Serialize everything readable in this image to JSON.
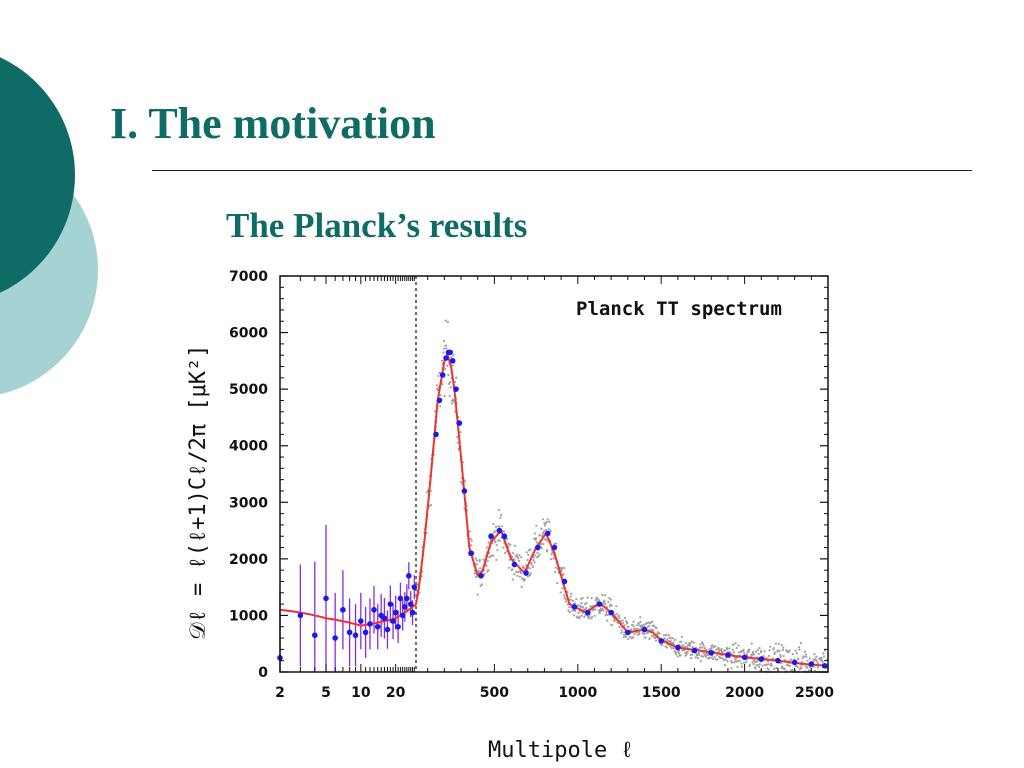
{
  "slide": {
    "title": "I. The motivation",
    "subtitle": "The Planck’s results"
  },
  "colors": {
    "accent_dark": "#0e6b66",
    "accent_light": "#a5d3d3",
    "model_curve": "#ee3333",
    "binned_points": "#1a1aee",
    "lowl_errorbars": "#8a2be2",
    "unbinned_points": "#a0a0a0"
  },
  "chart_data": {
    "type": "scatter",
    "title": "Planck TT spectrum",
    "xlabel": "Multipole ℓ",
    "ylabel": "𝒟ℓ = ℓ(ℓ+1)Cℓ/2π [μK²]",
    "x_scale_low": "log",
    "x_scale_high": "linear",
    "x_split": 30,
    "xlim": [
      2,
      2500
    ],
    "ylim": [
      0,
      7000
    ],
    "x_ticks_low": [
      "2",
      "5",
      "10",
      "20"
    ],
    "x_ticks_high": [
      "500",
      "1000",
      "1500",
      "2000",
      "2500"
    ],
    "y_ticks": [
      "0",
      "1000",
      "2000",
      "3000",
      "4000",
      "5000",
      "6000",
      "7000"
    ],
    "series": [
      {
        "kind": "model_curve",
        "x": [
          2,
          5,
          10,
          20,
          30,
          50,
          80,
          120,
          160,
          200,
          220,
          240,
          260,
          300,
          350,
          400,
          430,
          480,
          540,
          600,
          680,
          750,
          810,
          860,
          950,
          1050,
          1130,
          1200,
          1300,
          1400,
          1450,
          1500,
          1600,
          1700,
          1800,
          1900,
          2000,
          2100,
          2200,
          2300,
          2400,
          2500
        ],
        "y": [
          1100,
          950,
          820,
          950,
          1200,
          1550,
          2300,
          3500,
          4800,
          5500,
          5600,
          5400,
          5000,
          3800,
          2200,
          1700,
          1800,
          2300,
          2500,
          2000,
          1750,
          2200,
          2450,
          2100,
          1200,
          1050,
          1220,
          1050,
          700,
          750,
          700,
          560,
          430,
          390,
          350,
          300,
          260,
          230,
          200,
          160,
          130,
          110
        ]
      },
      {
        "kind": "binned_points",
        "x": [
          150,
          170,
          190,
          210,
          225,
          235,
          250,
          270,
          290,
          320,
          360,
          420,
          480,
          530,
          560,
          620,
          690,
          760,
          820,
          860,
          920,
          980,
          1060,
          1130,
          1200,
          1300,
          1400,
          1500,
          1600,
          1700,
          1800,
          1900,
          2000,
          2100,
          2200,
          2300,
          2400,
          2480
        ],
        "y": [
          4200,
          4800,
          5250,
          5550,
          5650,
          5650,
          5500,
          5000,
          4400,
          3200,
          2100,
          1700,
          2400,
          2500,
          2400,
          1900,
          1750,
          2200,
          2450,
          2200,
          1600,
          1150,
          1050,
          1200,
          1050,
          700,
          750,
          550,
          430,
          380,
          340,
          300,
          260,
          230,
          200,
          170,
          140,
          110
        ]
      },
      {
        "kind": "lowl_points_errorbars",
        "x": [
          2,
          3,
          4,
          5,
          6,
          7,
          8,
          9,
          10,
          11,
          12,
          13,
          14,
          15,
          16,
          17,
          18,
          19,
          20,
          21,
          22,
          23,
          24,
          25,
          26,
          27,
          28,
          29
        ],
        "y": [
          250,
          1000,
          650,
          1300,
          600,
          1100,
          700,
          650,
          900,
          700,
          850,
          1100,
          800,
          1000,
          950,
          750,
          1200,
          900,
          1050,
          800,
          1300,
          1000,
          1150,
          1300,
          1700,
          1200,
          1050,
          1500
        ],
        "err": [
          1200,
          900,
          1300,
          1300,
          800,
          700,
          600,
          550,
          500,
          450,
          450,
          420,
          400,
          380,
          360,
          340,
          330,
          320,
          300,
          290,
          280,
          270,
          260,
          250,
          240,
          230,
          220,
          210
        ]
      }
    ]
  }
}
